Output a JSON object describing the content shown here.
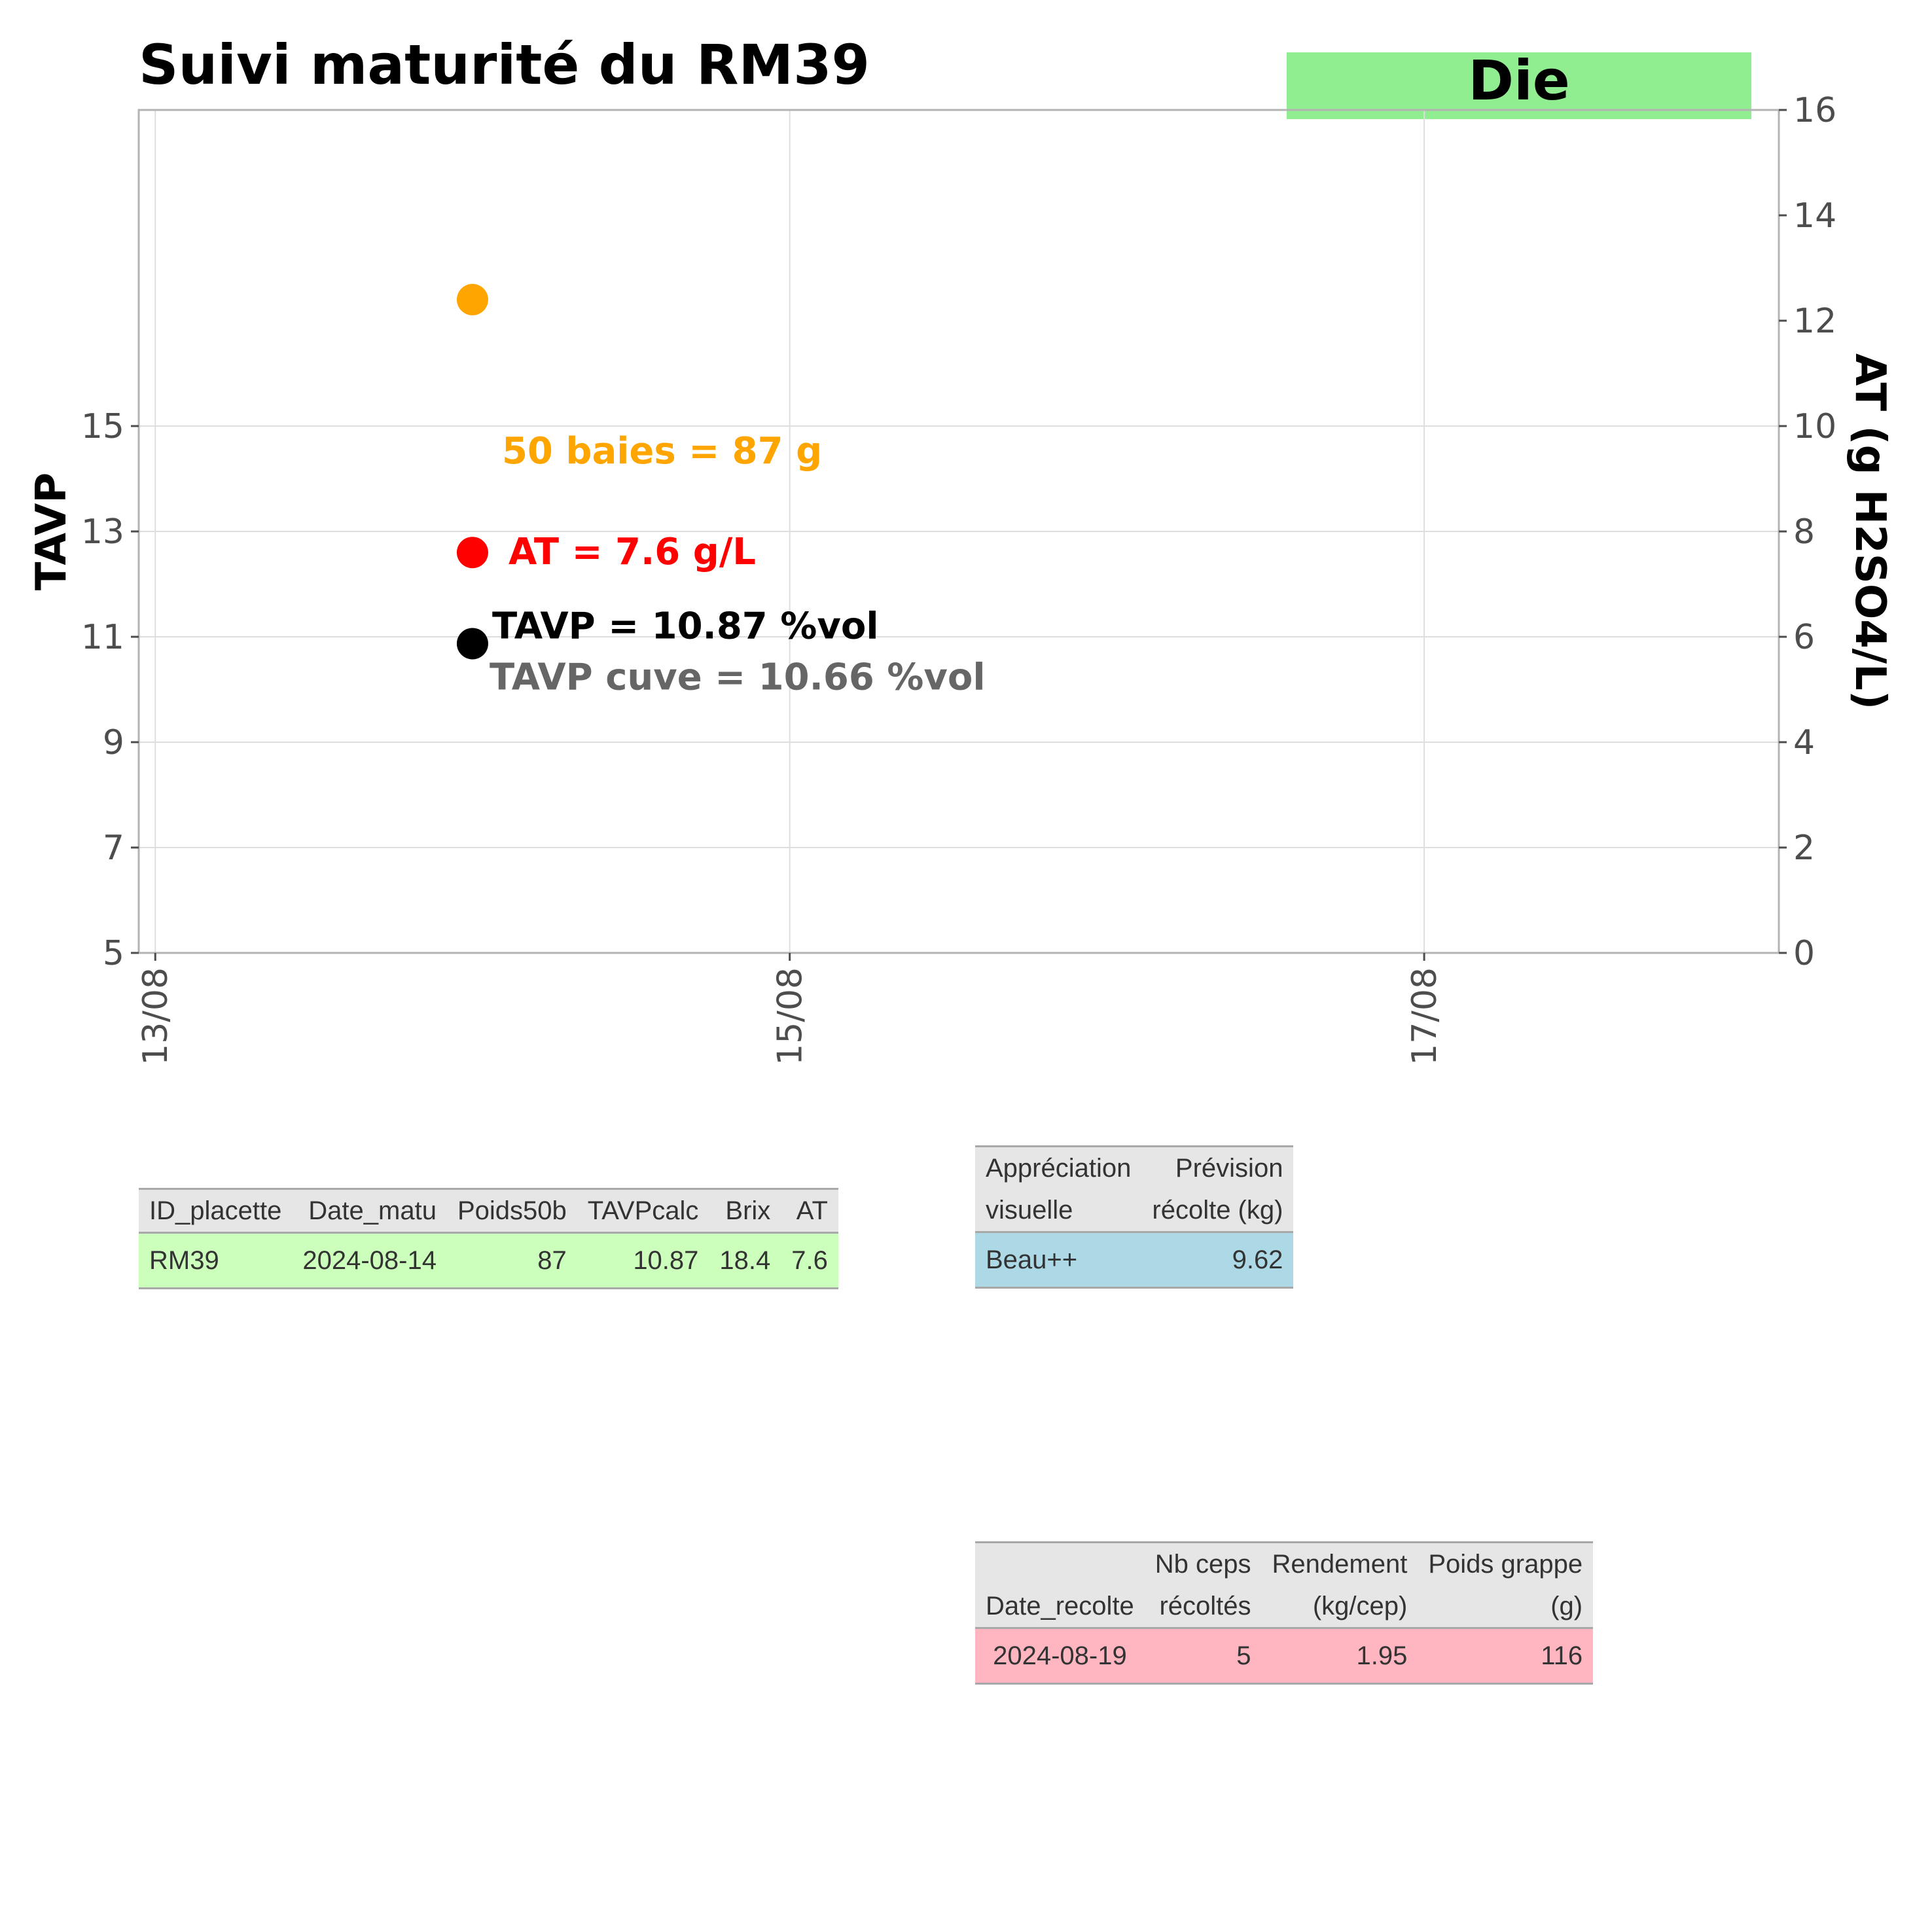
{
  "chart_data": {
    "type": "scatter",
    "title": "Suivi maturité du  RM39",
    "badge": {
      "label": "Die",
      "color": "#90ee90"
    },
    "xlabel": "",
    "ylabel_left": "TAVP",
    "ylabel_right": "AT (g H2SO4/L)",
    "x_ticks": [
      "13/08",
      "15/08",
      "17/08"
    ],
    "x_tick_values": [
      "2024-08-13",
      "2024-08-15",
      "2024-08-17"
    ],
    "xlim": [
      "2024-08-12 22:45",
      "2024-08-18 02:50"
    ],
    "ylim_left": [
      5,
      21
    ],
    "ylim_right": [
      0,
      16
    ],
    "y_ticks_left": [
      5,
      7,
      9,
      11,
      13,
      15
    ],
    "y_ticks_right": [
      0,
      2,
      4,
      6,
      8,
      10,
      12,
      14,
      16
    ],
    "grid": true,
    "points": [
      {
        "name": "TAVP",
        "axis": "left",
        "x": "2024-08-14",
        "y": 10.87,
        "color": "#000000",
        "label": "TAVP = 10.87 %vol"
      },
      {
        "name": "AT",
        "axis": "right",
        "x": "2024-08-14",
        "y": 7.6,
        "color": "#ff0000",
        "label": "AT = 7.6 g/L"
      },
      {
        "name": "Poids50b",
        "axis": "left",
        "x": "2024-08-14",
        "y": 17.4,
        "color": "#ffa500",
        "label": "50 baies = 87 g"
      }
    ],
    "annotations": [
      {
        "text": "TAVP cuve = 10.66 %vol",
        "color": "#666666"
      }
    ]
  },
  "table_matu": {
    "header_color": "#e6e6e6",
    "row_color": "#ccffbb",
    "columns": [
      "ID_placette",
      "Date_matu",
      "Poids50b",
      "TAVPcalc",
      "Brix",
      "AT"
    ],
    "rows": [
      [
        "RM39",
        "2024-08-14",
        "87",
        "10.87",
        "18.4",
        "7.6"
      ]
    ]
  },
  "table_visuel": {
    "header_color": "#e6e6e6",
    "row_color": "#add8e6",
    "columns": [
      [
        "Appréciation",
        "visuelle"
      ],
      [
        "Prévision",
        "récolte (kg)"
      ]
    ],
    "rows": [
      [
        "Beau++",
        "9.62"
      ]
    ]
  },
  "table_recolte": {
    "header_color": "#e6e6e6",
    "row_color": "#ffb6c1",
    "columns": [
      [
        "",
        "Date_recolte"
      ],
      [
        "Nb ceps",
        "récoltés"
      ],
      [
        "Rendement",
        "(kg/cep)"
      ],
      [
        "Poids grappe",
        "(g)"
      ]
    ],
    "rows": [
      [
        "2024-08-19",
        "5",
        "1.95",
        "116"
      ]
    ]
  }
}
